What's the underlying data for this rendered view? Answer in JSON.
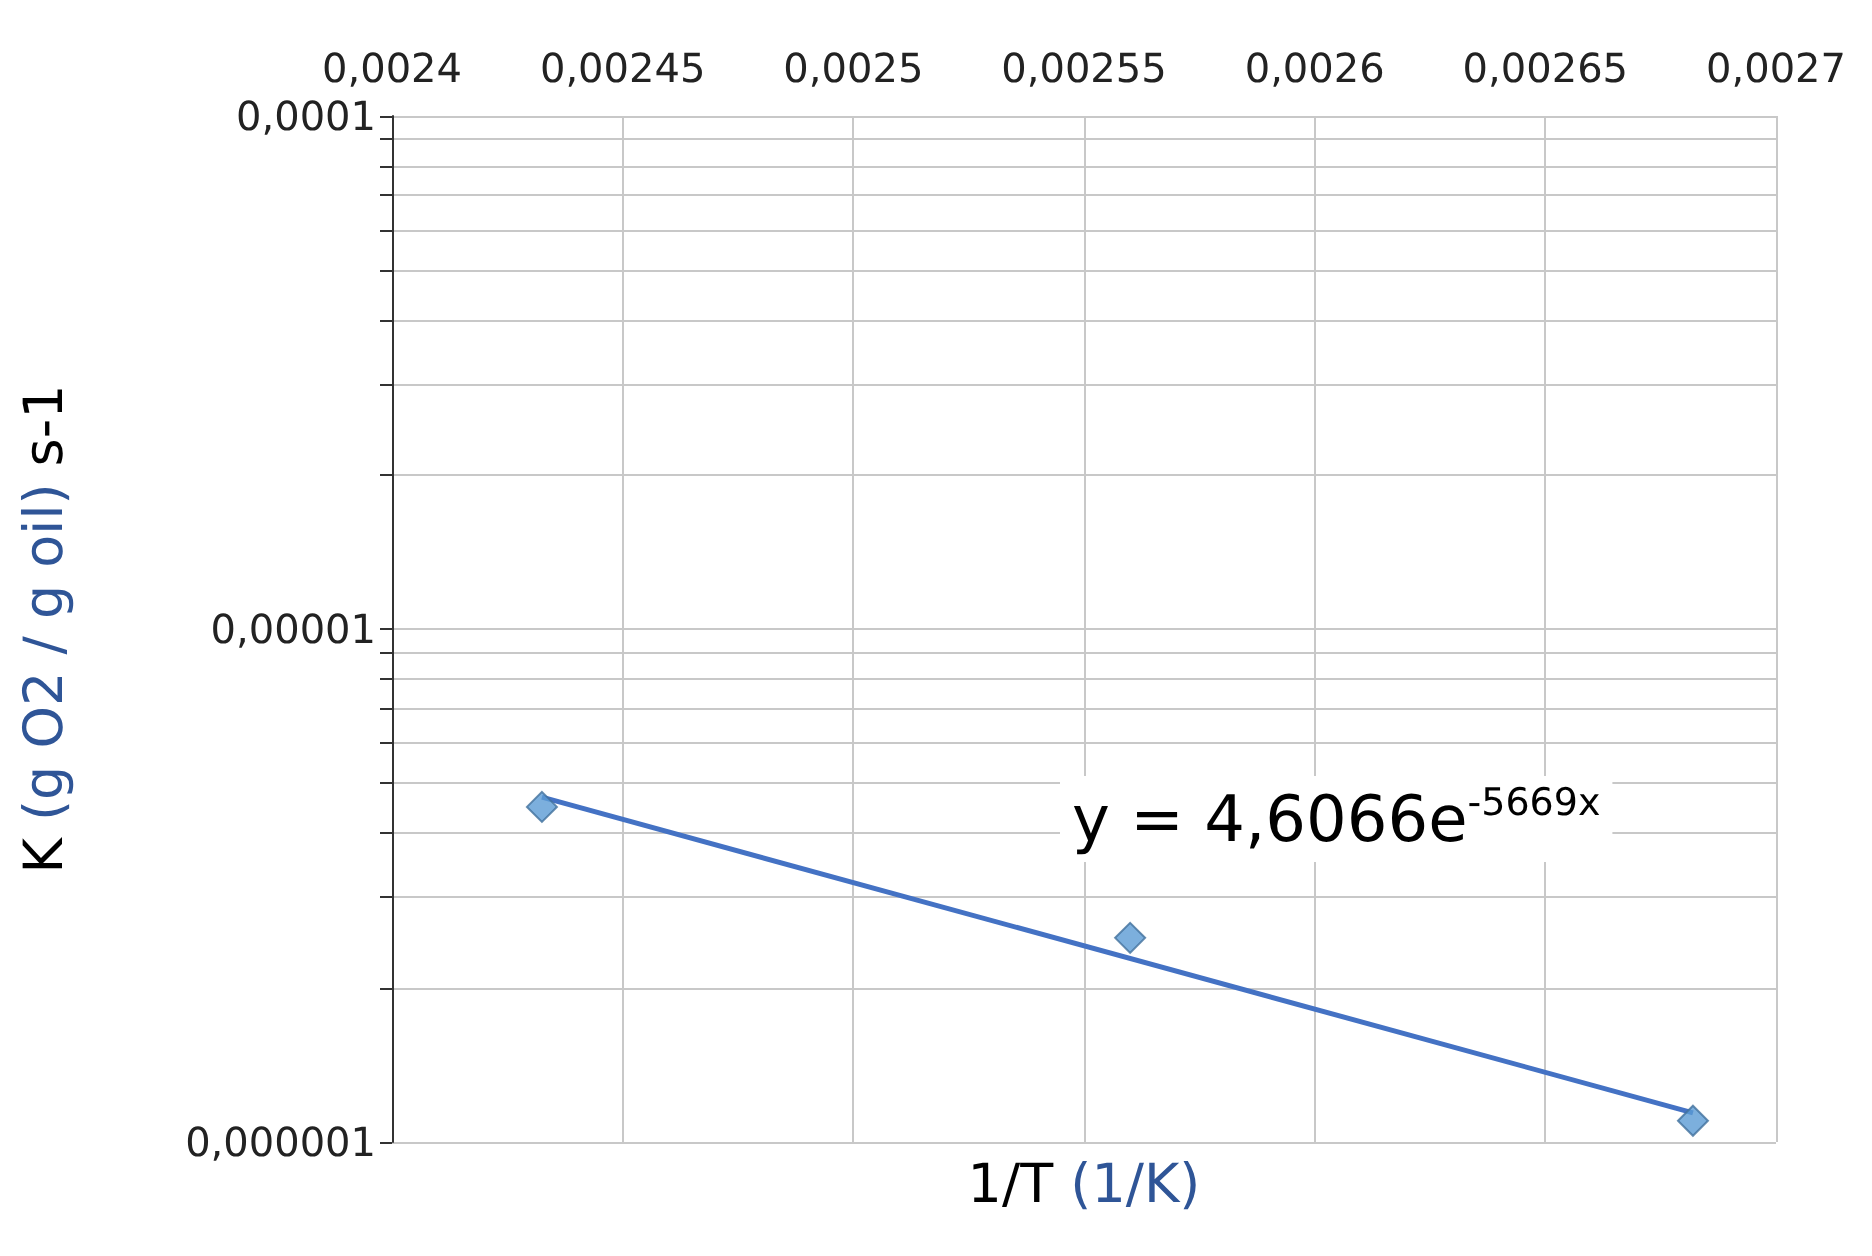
{
  "chart_data": {
    "type": "scatter",
    "xlabel": "1/T (1/K)",
    "ylabel": "K (g O2 / g oil) s-1",
    "annotations": [
      "y = 4,6066e$^{-5669x}$"
    ],
    "series": [
      {
        "type": "scatter",
        "color": "#5b9bd5",
        "marker": "diamond",
        "x": [
          0.0024325,
          0.00256,
          0.002682
        ],
        "values": [
          4.5e-06,
          2.5e-06,
          1.1e-06
        ]
      },
      {
        "type": "line",
        "color": "#4472c4",
        "marker": "none",
        "x": [
          0.0024325,
          0.002682
        ],
        "values": [
          4.7e-06,
          1.14e-06
        ]
      }
    ],
    "log": "y",
    "grid": true,
    "xlim": [
      0.0024,
      0.0027
    ],
    "xticks": [
      {
        "value": 0.0024,
        "label": "0,0024"
      },
      {
        "value": 0.00245,
        "label": "0,00245"
      },
      {
        "value": 0.0025,
        "label": "0,0025"
      },
      {
        "value": 0.00255,
        "label": "0,00255"
      },
      {
        "value": 0.0026,
        "label": "0,0026"
      },
      {
        "value": 0.00265,
        "label": "0,00265"
      },
      {
        "value": 0.0027,
        "label": "0,0027"
      }
    ],
    "ylim": [
      1e-06,
      0.0001
    ],
    "yticks": [
      {
        "value": 1e-06,
        "label": "0,000001"
      },
      {
        "value": 2e-06,
        "label": null
      },
      {
        "value": 3e-06,
        "label": null
      },
      {
        "value": 4e-06,
        "label": null
      },
      {
        "value": 5e-06,
        "label": null
      },
      {
        "value": 6e-06,
        "label": null
      },
      {
        "value": 7e-06,
        "label": null
      },
      {
        "value": 8e-06,
        "label": null
      },
      {
        "value": 9e-06,
        "label": null
      },
      {
        "value": 1e-05,
        "label": "0,00001"
      },
      {
        "value": 2e-05,
        "label": null
      },
      {
        "value": 3e-05,
        "label": null
      },
      {
        "value": 4e-05,
        "label": null
      },
      {
        "value": 5e-05,
        "label": null
      },
      {
        "value": 6e-05,
        "label": null
      },
      {
        "value": 7e-05,
        "label": null
      },
      {
        "value": 8e-05,
        "label": null
      },
      {
        "value": 9e-05,
        "label": null
      },
      {
        "value": 0.0001,
        "label": "0,0001"
      }
    ]
  }
}
